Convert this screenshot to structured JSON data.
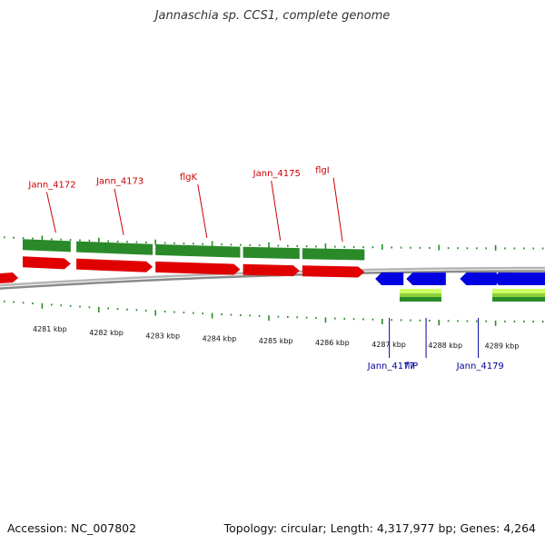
{
  "title": "Jannaschia sp. CCS1, complete genome",
  "footer": {
    "accession": "Accession: NC_007802",
    "summary": "Topology: circular; Length: 4,317,977 bp; Genes: 4,264"
  },
  "colors": {
    "forward_cds": "#e00000",
    "reverse_cds": "#0000e0",
    "gene_bar": "#2a8a2a",
    "gc_light": "#ccff66",
    "backbone": "#8a8a8a",
    "tick": "#2a8a2a",
    "label_forward": "#cc0000",
    "label_reverse": "#000099"
  },
  "axis": {
    "unit": "kbp",
    "ticks": [
      4281,
      4282,
      4283,
      4284,
      4285,
      4286,
      4287,
      4288,
      4289
    ],
    "tick_labels": [
      "4281 kbp",
      "4282 kbp",
      "4283 kbp",
      "4284 kbp",
      "4285 kbp",
      "4286 kbp",
      "4287 kbp",
      "4288 kbp",
      "4289 kbp"
    ]
  },
  "genes": {
    "forward": [
      {
        "label": "Jann_4172",
        "start": 4281.0,
        "end": 4281.85
      },
      {
        "label": "Jann_4173",
        "start": 4281.95,
        "end": 4283.3
      },
      {
        "label": "flgK",
        "start": 4283.35,
        "end": 4284.85
      },
      {
        "label": "Jann_4175",
        "start": 4284.9,
        "end": 4285.9
      },
      {
        "label": "flgI",
        "start": 4285.95,
        "end": 4287.05
      }
    ],
    "reverse": [
      {
        "label": "Jann_4177",
        "start": 4286.95,
        "end": 4287.45
      },
      {
        "label": "fliP",
        "start": 4287.5,
        "end": 4288.2
      },
      {
        "label": "Jann_4179",
        "start": 4288.45,
        "end": 4289.1
      }
    ]
  }
}
